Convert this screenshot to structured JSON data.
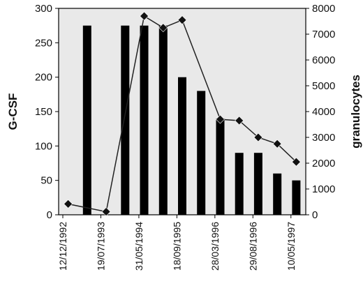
{
  "chart_data": {
    "type": "bar+line",
    "ylabel_left": "G-CSF",
    "ylabel_right": "granulocytes",
    "ylim_left": [
      0,
      300
    ],
    "ylim_right": [
      0,
      8000
    ],
    "yticks_left": [
      0,
      50,
      100,
      150,
      200,
      250,
      300
    ],
    "yticks_right": [
      0,
      1000,
      2000,
      3000,
      4000,
      5000,
      6000,
      7000,
      8000
    ],
    "x_tick_labels": [
      "12/12/1992",
      "19/07/1993",
      "31/05/1994",
      "18/09/1995",
      "28/03/1996",
      "29/08/1996",
      "10/05/1997"
    ],
    "grid": false,
    "colors": {
      "plot_background": "#e9e9e9",
      "bars": "#000000",
      "line": "#222222",
      "markers": "#111111"
    },
    "series": [
      {
        "axis": "left",
        "type": "bar",
        "values": [
          null,
          275,
          null,
          275,
          275,
          275,
          200,
          180,
          140,
          90,
          90,
          60,
          50
        ]
      },
      {
        "axis": "right",
        "type": "line",
        "marker": "diamond",
        "values": [
          420,
          null,
          120,
          null,
          7700,
          7250,
          7550,
          null,
          3700,
          3650,
          3000,
          2750,
          2050
        ]
      }
    ]
  }
}
